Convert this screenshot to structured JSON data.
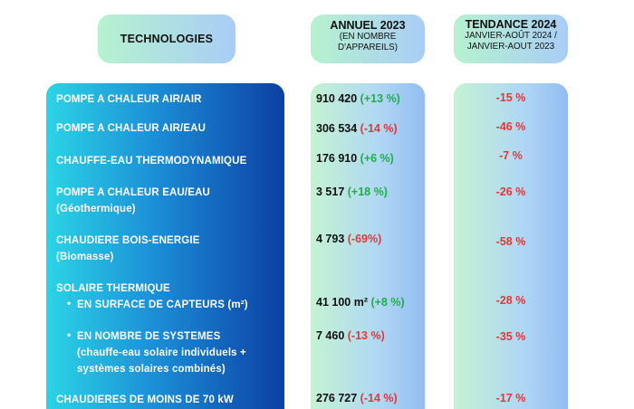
{
  "headers": {
    "technologies": "TECHNOLOGIES",
    "annuel_title": "ANNUEL 2023",
    "annuel_sub1": "(EN NOMBRE",
    "annuel_sub2": "D'APPAREILS)",
    "tendance_title": "TENDANCE 2024",
    "tendance_sub1": "JANVIER-AOÛT 2024 /",
    "tendance_sub2": "JANVIER-AOUT 2023"
  },
  "rows": [
    {
      "name": "POMPE A CHALEUR AIR/AIR",
      "value": "910 420",
      "change": "(+13 %)",
      "trend": "-15 %"
    },
    {
      "name": "POMPE A CHALEUR AIR/EAU",
      "value": "306 534",
      "change": "(-14 %)",
      "trend": "-46 %"
    },
    {
      "name": "CHAUFFE-EAU THERMODYNAMIQUE",
      "value": "176 910",
      "change": "(+6 %)",
      "trend": "-7 %"
    },
    {
      "name": "POMPE A CHALEUR EAU/EAU",
      "name2": "(Géothermique)",
      "value": "3 517",
      "change": "(+18 %)",
      "trend": "-26 %"
    },
    {
      "name": "CHAUDIERE BOIS-ENERGIE",
      "name2": "(Biomasse)",
      "value": "4 793",
      "change": "(-69%)",
      "trend": "-58 %"
    },
    {
      "name": "SOLAIRE THERMIQUE"
    },
    {
      "name": "EN SURFACE DE CAPTEURS (m²)",
      "value": "41 100  m²",
      "change": "(+8 %)",
      "trend": "-28 %"
    },
    {
      "name": "EN NOMBRE DE SYSTEMES",
      "name2": "(chauffe-eau solaire individuels +",
      "name3": "systèmes solaires combinés)",
      "value": "7 460",
      "change": "(-13 %)",
      "trend": "-35 %"
    },
    {
      "name": "CHAUDIERES DE MOINS DE 70 kW",
      "value": "276 727",
      "change": "(-14 %)",
      "trend": "-17 %"
    }
  ]
}
